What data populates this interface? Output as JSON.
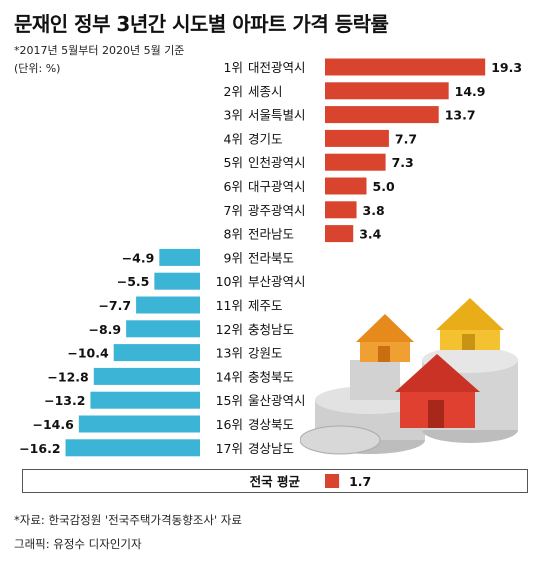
{
  "title": "문재인 정부 3년간 시도별 아파트 가격 등락률",
  "note_period": "*2017년 5월부터 2020년 5월 기준",
  "note_unit": "(단위: %)",
  "footer_source": "*자료: 한국감정원 '전국주택가격동향조사' 자료",
  "footer_graphic": "그래픽: 유정수 디자인기자",
  "colors": {
    "positive": "#d9442f",
    "negative": "#3bb4d6"
  },
  "chart_data": {
    "type": "bar",
    "orientation": "horizontal",
    "categories": [
      "1위",
      "2위",
      "3위",
      "4위",
      "5위",
      "6위",
      "7위",
      "8위",
      "9위",
      "10위",
      "11위",
      "12위",
      "13위",
      "14위",
      "15위",
      "16위",
      "17위"
    ],
    "regions": [
      "대전광역시",
      "세종시",
      "서울특별시",
      "경기도",
      "인천광역시",
      "대구광역시",
      "광주광역시",
      "전라남도",
      "전라북도",
      "부산광역시",
      "제주도",
      "충청남도",
      "강원도",
      "충청북도",
      "울산광역시",
      "경상북도",
      "경상남도"
    ],
    "values": [
      19.3,
      14.9,
      13.7,
      7.7,
      7.3,
      5.0,
      3.8,
      3.4,
      -4.9,
      -5.5,
      -7.7,
      -8.9,
      -10.4,
      -12.8,
      -13.2,
      -14.6,
      -16.2
    ],
    "value_labels": [
      "19.3",
      "14.9",
      "13.7",
      "7.7",
      "7.3",
      "5.0",
      "3.8",
      "3.4",
      "−4.9",
      "−5.5",
      "−7.7",
      "−8.9",
      "−10.4",
      "−12.8",
      "−13.2",
      "−14.6",
      "−16.2"
    ],
    "average": {
      "label": "전국 평균",
      "value": 1.7,
      "value_label": "1.7"
    }
  }
}
